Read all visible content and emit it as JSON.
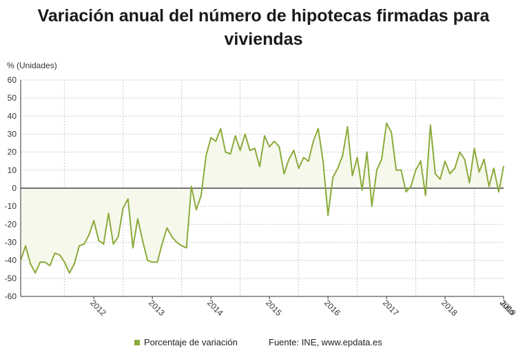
{
  "title": "Variación anual del número de hipotecas firmadas para viviendas",
  "unit_label": "% (Unidades)",
  "legend_label": "Porcentaje de variación",
  "source": "Fuente: INE, www.epdata.es",
  "colors": {
    "line": "#8aaa3a",
    "area": "#f6f8ec",
    "grid": "#c8c8c8",
    "zero": "#222222"
  },
  "chart_data": {
    "type": "area",
    "x_start": "2011-04",
    "x_end": "2019-07",
    "ylim": [
      -60,
      60
    ],
    "y_ticks": [
      "60",
      "50",
      "40",
      "30",
      "20",
      "10",
      "0",
      "-10",
      "-20",
      "-30",
      "-40",
      "-50",
      "-60"
    ],
    "x_tick_labels": [
      "2012",
      "2013",
      "2014",
      "2015",
      "2016",
      "2017",
      "2018",
      "2019",
      "Julio"
    ],
    "grid": true,
    "legend_position": "bottom",
    "series": [
      {
        "name": "Porcentaje de variación",
        "values": [
          -40,
          -32,
          -42,
          -47,
          -41,
          -41,
          -43,
          -36,
          -37,
          -41,
          -47,
          -42,
          -32,
          -31,
          -26,
          -18,
          -29,
          -31,
          -14,
          -31,
          -27,
          -11,
          -6,
          -33,
          -17,
          -29,
          -40,
          -41,
          -41,
          -31,
          -22,
          -27,
          -30,
          -32,
          -33,
          1,
          -12,
          -4,
          18,
          28,
          26,
          33,
          20,
          19,
          29,
          21,
          30,
          21,
          22,
          12,
          29,
          23,
          26,
          23,
          8,
          16,
          21,
          11,
          17,
          15,
          26,
          33,
          15,
          -15,
          6,
          11,
          18,
          34,
          7,
          17,
          -1,
          20,
          -10,
          10,
          16,
          36,
          31,
          10,
          10,
          -2,
          1,
          10,
          15,
          -4,
          35,
          8,
          5,
          15,
          8,
          11,
          20,
          16,
          3,
          22,
          9,
          16,
          1,
          11,
          -2,
          12
        ]
      }
    ]
  }
}
